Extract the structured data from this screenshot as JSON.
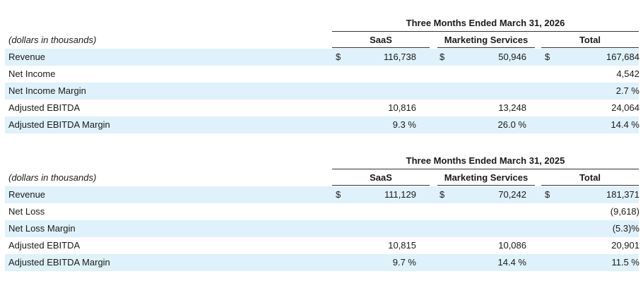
{
  "tables": [
    {
      "period": "Three Months Ended March 31, 2026",
      "units": "(dollars in thousands)",
      "columns": [
        "SaaS",
        "Marketing Services",
        "Total"
      ],
      "rows": [
        {
          "label": "Revenue",
          "c1": "$",
          "v1": "116,738",
          "c2": "$",
          "v2": "50,946",
          "c3": "$",
          "v3": "167,684"
        },
        {
          "label": "Net Income",
          "c1": "",
          "v1": "",
          "c2": "",
          "v2": "",
          "c3": "",
          "v3": "4,542"
        },
        {
          "label": "Net Income Margin",
          "c1": "",
          "v1": "",
          "c2": "",
          "v2": "",
          "c3": "",
          "v3": "2.7 %"
        },
        {
          "label": "Adjusted EBITDA",
          "c1": "",
          "v1": "10,816",
          "c2": "",
          "v2": "13,248",
          "c3": "",
          "v3": "24,064"
        },
        {
          "label": "Adjusted EBITDA Margin",
          "c1": "",
          "v1": "9.3 %",
          "c2": "",
          "v2": "26.0 %",
          "c3": "",
          "v3": "14.4 %"
        }
      ]
    },
    {
      "period": "Three Months Ended March 31, 2025",
      "units": "(dollars in thousands)",
      "columns": [
        "SaaS",
        "Marketing Services",
        "Total"
      ],
      "rows": [
        {
          "label": "Revenue",
          "c1": "$",
          "v1": "111,129",
          "c2": "$",
          "v2": "70,242",
          "c3": "$",
          "v3": "181,371"
        },
        {
          "label": "Net Loss",
          "c1": "",
          "v1": "",
          "c2": "",
          "v2": "",
          "c3": "",
          "v3": "(9,618)"
        },
        {
          "label": "Net Loss Margin",
          "c1": "",
          "v1": "",
          "c2": "",
          "v2": "",
          "c3": "",
          "v3": "(5.3)%"
        },
        {
          "label": "Adjusted EBITDA",
          "c1": "",
          "v1": "10,815",
          "c2": "",
          "v2": "10,086",
          "c3": "",
          "v3": "20,901"
        },
        {
          "label": "Adjusted EBITDA Margin",
          "c1": "",
          "v1": "9.7 %",
          "c2": "",
          "v2": "14.4 %",
          "c3": "",
          "v3": "11.5 %"
        }
      ]
    }
  ]
}
